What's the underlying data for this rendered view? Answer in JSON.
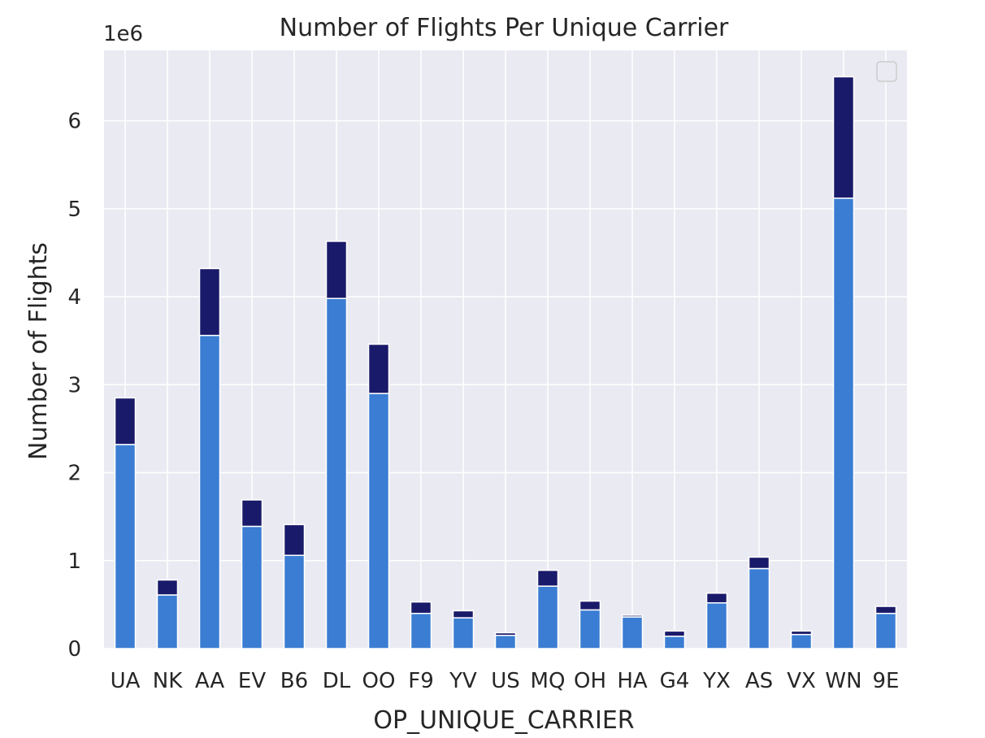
{
  "chart_data": {
    "type": "bar",
    "stacked": true,
    "title": "Number of Flights Per Unique Carrier",
    "xlabel": "OP_UNIQUE_CARRIER",
    "ylabel": "Number of Flights",
    "y_offset_label": "1e6",
    "ylim": [
      0,
      6800000
    ],
    "yticks": [
      0,
      1,
      2,
      3,
      4,
      5,
      6
    ],
    "grid": true,
    "legend": "top-right, empty",
    "colors": {
      "background": "#eaeaf2",
      "grid": "#ffffff",
      "lower": "#3a7dd3",
      "upper": "#1a1a6a"
    },
    "categories": [
      "UA",
      "NK",
      "AA",
      "EV",
      "B6",
      "DL",
      "OO",
      "F9",
      "YV",
      "US",
      "MQ",
      "OH",
      "HA",
      "G4",
      "YX",
      "AS",
      "VX",
      "WN",
      "9E"
    ],
    "series": [
      {
        "values": [
          2320000,
          610000,
          3560000,
          1390000,
          1060000,
          3980000,
          2900000,
          400000,
          350000,
          150000,
          710000,
          440000,
          360000,
          140000,
          520000,
          910000,
          160000,
          5120000,
          400000
        ]
      },
      {
        "values": [
          530000,
          170000,
          760000,
          300000,
          350000,
          650000,
          560000,
          130000,
          80000,
          30000,
          180000,
          100000,
          20000,
          60000,
          110000,
          130000,
          40000,
          1380000,
          80000
        ]
      }
    ]
  }
}
